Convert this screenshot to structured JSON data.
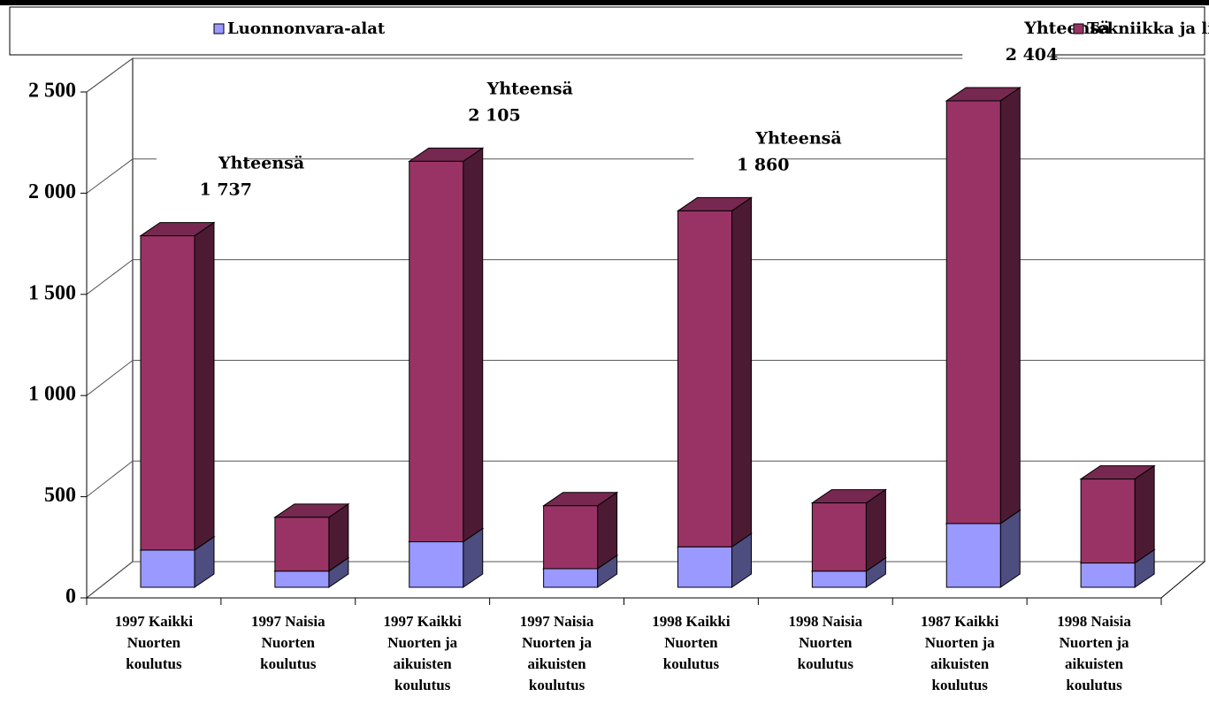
{
  "chart_data": {
    "type": "bar3d_stacked",
    "categories": [
      "1997 Kaikki\nNuorten\nkoulutus",
      "1997 Naisia\nNuorten\nkoulutus",
      "1997 Kaikki\nNuorten ja\naikuisten\nkoulutus",
      "1997 Naisia\nNuorten ja\naikuisten\nkoulutus",
      "1998 Kaikki\nNuorten\nkoulutus",
      "1998 Naisia\nNuorten\nkoulutus",
      "1987 Kaikki\nNuorten ja\naikuisten\nkoulutus",
      "1998 Naisia\nNuorten ja\naikuisten\nkoulutus"
    ],
    "series": [
      {
        "name": "Luonnonvara-alat",
        "color": "#9999ff",
        "values": [
          184,
          80,
          225,
          92,
          200,
          80,
          315,
          120
        ]
      },
      {
        "name": "Tekniikka ja liikenne",
        "color": "#993366",
        "values": [
          1553,
          266,
          1880,
          311,
          1660,
          337,
          2089,
          415
        ]
      }
    ],
    "ylim": [
      0,
      2500
    ],
    "yticks": [
      0,
      500,
      {
        "value": 1000,
        "label": "1 000"
      },
      {
        "value": 1500,
        "label": "1 500"
      },
      {
        "value": 2000,
        "label": "2 000"
      },
      {
        "value": 2500,
        "label": "2 500"
      }
    ],
    "grid": true,
    "annotations": [
      [
        "Yhteensä",
        "1 737"
      ],
      [
        "Yhteensä",
        "2 105"
      ],
      [
        "Yhteensä",
        "1 860"
      ],
      [
        "Yhteensä",
        "2 404"
      ]
    ]
  }
}
